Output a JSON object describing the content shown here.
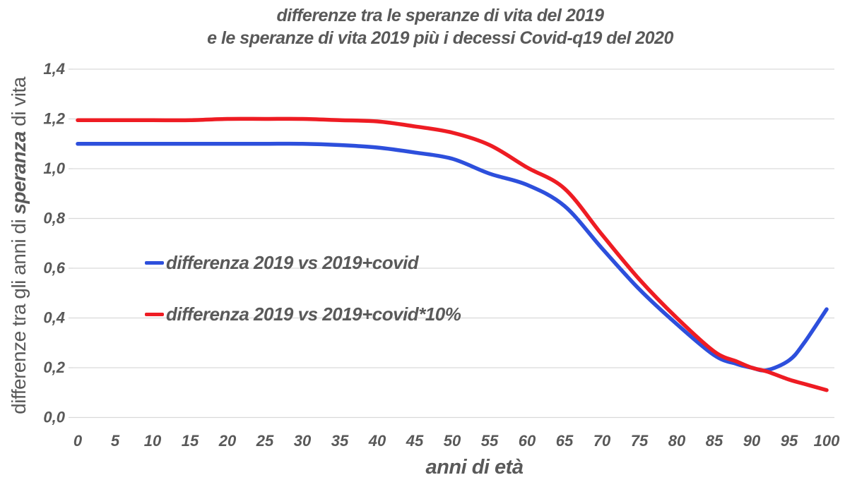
{
  "title": {
    "line1": "differenze tra le speranze di vita del 2019",
    "line2": "e le speranze di vita 2019 più i decessi Covid-q19 del 2020"
  },
  "axes": {
    "y_label_prefix": "differenze tra gli anni di ",
    "y_label_emphasis": "speranza",
    "y_label_suffix": " di vita",
    "x_label": "anni di età"
  },
  "colors": {
    "background": "#ffffff",
    "text": "#595959",
    "grid": "#d9d9d9",
    "series_blue": "#2d4fdc",
    "series_red": "#ee1c23"
  },
  "chart_data": {
    "type": "line",
    "title": "differenze tra le speranze di vita del 2019 e le speranze di vita 2019 più i decessi Covid-q19 del 2020",
    "xlabel": "anni di età",
    "ylabel": "differenze tra gli anni di speranza di vita",
    "xlim": [
      0,
      100
    ],
    "ylim": [
      0,
      1.4
    ],
    "grid": "horizontal",
    "legend_position": "inside-left",
    "x_ticks": [
      0,
      5,
      10,
      15,
      20,
      25,
      30,
      35,
      40,
      45,
      50,
      55,
      60,
      65,
      70,
      75,
      80,
      85,
      90,
      95,
      100
    ],
    "y_ticks": [
      0,
      0.2,
      0.4,
      0.6,
      0.8,
      1.0,
      1.2,
      1.4
    ],
    "y_tick_labels": [
      "0,0",
      "0,2",
      "0,4",
      "0,6",
      "0,8",
      "1,0",
      "1,2",
      "1,4"
    ],
    "x": [
      0,
      5,
      10,
      15,
      20,
      25,
      30,
      35,
      40,
      45,
      50,
      55,
      60,
      65,
      70,
      75,
      80,
      85,
      88,
      90,
      92,
      95,
      97,
      100
    ],
    "series": [
      {
        "name": "differenza 2019 vs 2019+covid",
        "color": "#2d4fdc",
        "values": [
          1.1,
          1.1,
          1.1,
          1.1,
          1.1,
          1.1,
          1.1,
          1.095,
          1.085,
          1.065,
          1.04,
          0.98,
          0.935,
          0.85,
          0.68,
          0.515,
          0.375,
          0.25,
          0.215,
          0.2,
          0.19,
          0.23,
          0.3,
          0.435
        ]
      },
      {
        "name": "differenza 2019 vs 2019+covid*10%",
        "color": "#ee1c23",
        "values": [
          1.195,
          1.195,
          1.195,
          1.195,
          1.2,
          1.2,
          1.2,
          1.195,
          1.19,
          1.17,
          1.145,
          1.095,
          1.005,
          0.92,
          0.735,
          0.555,
          0.4,
          0.265,
          0.225,
          0.2,
          0.185,
          0.152,
          0.135,
          0.11
        ]
      }
    ]
  }
}
